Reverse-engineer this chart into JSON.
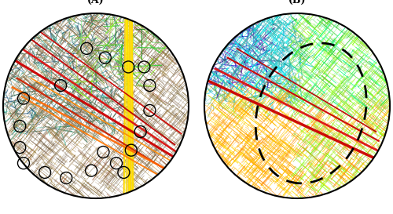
{
  "title_A": "(A)",
  "title_B": "(B)",
  "fig_width": 5.0,
  "fig_height": 2.73,
  "dpi": 100,
  "bg_color": "#ffffff",
  "seed_A": 42,
  "seed_B": 77
}
